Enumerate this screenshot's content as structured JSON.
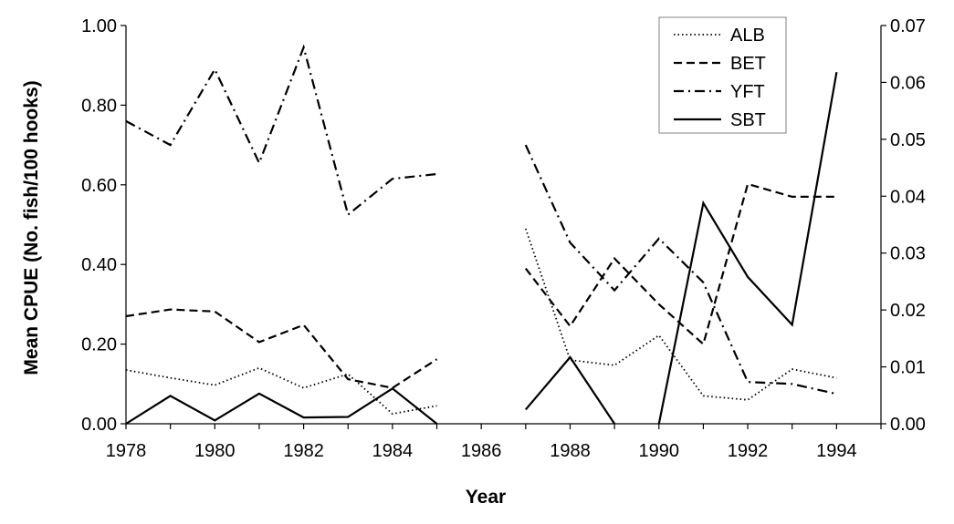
{
  "chart_data": {
    "type": "line",
    "title": "",
    "xlabel": "Year",
    "ylabel": "Mean CPUE (No. fish/100 hooks)",
    "x_ticks": [
      "1978",
      "1980",
      "1982",
      "1984",
      "1986",
      "1988",
      "1990",
      "1992",
      "1994"
    ],
    "xlim": [
      1978,
      1995
    ],
    "ylim": [
      0,
      1.0
    ],
    "y_ticks": [
      "0.00",
      "0.20",
      "0.40",
      "0.60",
      "0.80",
      "1.00"
    ],
    "y2lim": [
      0,
      0.07
    ],
    "y2_ticks": [
      "0.00",
      "0.01",
      "0.02",
      "0.03",
      "0.04",
      "0.05",
      "0.06",
      "0.07"
    ],
    "grid": false,
    "legend_position": "top-right",
    "series": [
      {
        "name": "ALB",
        "style": "dotted",
        "axis": "left",
        "segments": [
          [
            [
              1978,
              0.135
            ],
            [
              1979,
              0.115
            ],
            [
              1980,
              0.097
            ],
            [
              1981,
              0.14
            ],
            [
              1982,
              0.09
            ],
            [
              1983,
              0.125
            ],
            [
              1984,
              0.025
            ],
            [
              1985,
              0.045
            ]
          ],
          [
            [
              1987,
              0.49
            ],
            [
              1988,
              0.16
            ],
            [
              1989,
              0.147
            ],
            [
              1990,
              0.222
            ],
            [
              1991,
              0.07
            ],
            [
              1992,
              0.06
            ],
            [
              1993,
              0.137
            ],
            [
              1994,
              0.115
            ]
          ]
        ]
      },
      {
        "name": "BET",
        "style": "dashed",
        "axis": "left",
        "segments": [
          [
            [
              1978,
              0.27
            ],
            [
              1979,
              0.287
            ],
            [
              1980,
              0.282
            ],
            [
              1981,
              0.205
            ],
            [
              1982,
              0.248
            ],
            [
              1983,
              0.112
            ],
            [
              1984,
              0.09
            ],
            [
              1985,
              0.162
            ]
          ],
          [
            [
              1987,
              0.39
            ],
            [
              1988,
              0.245
            ],
            [
              1989,
              0.415
            ],
            [
              1990,
              0.3
            ],
            [
              1991,
              0.2
            ],
            [
              1992,
              0.602
            ],
            [
              1993,
              0.57
            ],
            [
              1994,
              0.57
            ]
          ]
        ]
      },
      {
        "name": "YFT",
        "style": "dashdot",
        "axis": "left",
        "segments": [
          [
            [
              1978,
              0.76
            ],
            [
              1979,
              0.7
            ],
            [
              1980,
              0.89
            ],
            [
              1981,
              0.655
            ],
            [
              1982,
              0.945
            ],
            [
              1983,
              0.525
            ],
            [
              1984,
              0.615
            ],
            [
              1985,
              0.627
            ]
          ],
          [
            [
              1987,
              0.7
            ],
            [
              1988,
              0.455
            ],
            [
              1989,
              0.335
            ],
            [
              1990,
              0.465
            ],
            [
              1991,
              0.355
            ],
            [
              1992,
              0.105
            ],
            [
              1993,
              0.1
            ],
            [
              1994,
              0.075
            ]
          ]
        ]
      },
      {
        "name": "SBT",
        "style": "solid",
        "axis": "right",
        "segments": [
          [
            [
              1978,
              0.0
            ],
            [
              1979,
              0.0049
            ],
            [
              1980,
              0.0006
            ],
            [
              1981,
              0.0053
            ],
            [
              1982,
              0.0011
            ],
            [
              1983,
              0.0012
            ],
            [
              1984,
              0.0062
            ],
            [
              1985,
              0.0
            ]
          ],
          [
            [
              1987,
              0.0025
            ],
            [
              1988,
              0.0117
            ],
            [
              1989,
              0.0
            ]
          ],
          [
            [
              1990,
              0.0
            ],
            [
              1991,
              0.0388
            ],
            [
              1992,
              0.0258
            ],
            [
              1993,
              0.0174
            ],
            [
              1994,
              0.0618
            ]
          ]
        ]
      }
    ]
  }
}
